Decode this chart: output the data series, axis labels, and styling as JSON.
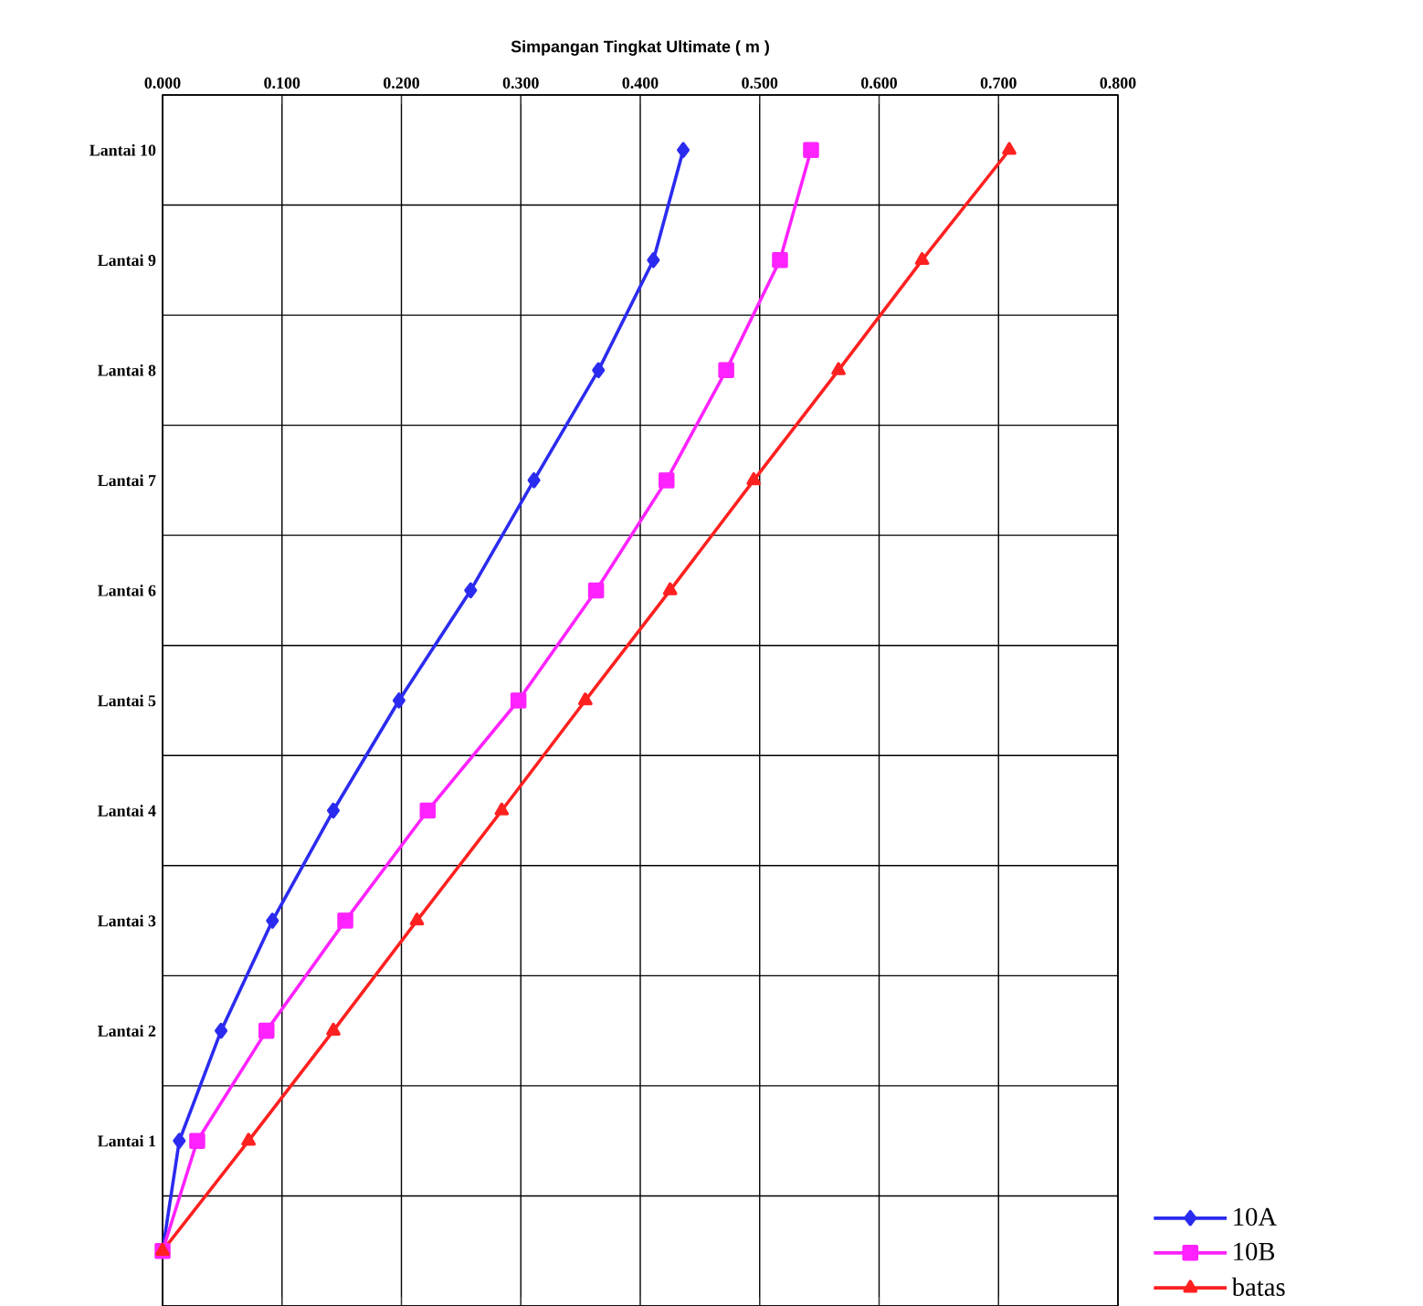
{
  "chart_data": {
    "type": "line",
    "orientation": "horizontal",
    "xlabel": "Simpangan Tingkat Ultimate ( m )",
    "categories": [
      "Lantai 10",
      "Lantai 9",
      "Lantai 8",
      "Lantai 7",
      "Lantai 6",
      "Lantai 5",
      "Lantai 4",
      "Lantai 3",
      "Lantai 2",
      "Lantai 1",
      null
    ],
    "series": [
      {
        "name": "10A",
        "color": "#2b2bf0",
        "marker": "diamond",
        "values": [
          0.436,
          0.411,
          0.365,
          0.311,
          0.258,
          0.198,
          0.143,
          0.092,
          0.049,
          0.014,
          0
        ]
      },
      {
        "name": "10B",
        "color": "#ff22ff",
        "marker": "square",
        "values": [
          0.543,
          0.517,
          0.472,
          0.422,
          0.363,
          0.298,
          0.222,
          0.153,
          0.087,
          0.029,
          0
        ]
      },
      {
        "name": "batas",
        "color": "#ff2020",
        "marker": "triangle",
        "values": [
          0.709,
          0.636,
          0.566,
          0.495,
          0.425,
          0.354,
          0.284,
          0.213,
          0.143,
          0.072,
          0
        ]
      }
    ],
    "xlim": [
      0,
      0.8
    ],
    "xticks": [
      {
        "value": 0,
        "label": "0.000"
      },
      {
        "value": 0.1,
        "label": "0.100"
      },
      {
        "value": 0.2,
        "label": "0.200"
      },
      {
        "value": 0.3,
        "label": "0.300"
      },
      {
        "value": 0.4,
        "label": "0.400"
      },
      {
        "value": 0.5,
        "label": "0.500"
      },
      {
        "value": 0.6,
        "label": "0.600"
      },
      {
        "value": 0.7,
        "label": "0.700"
      },
      {
        "value": 0.8,
        "label": "0.800"
      }
    ],
    "grid": true,
    "legend": "bottom right",
    "line_style": "solid"
  }
}
